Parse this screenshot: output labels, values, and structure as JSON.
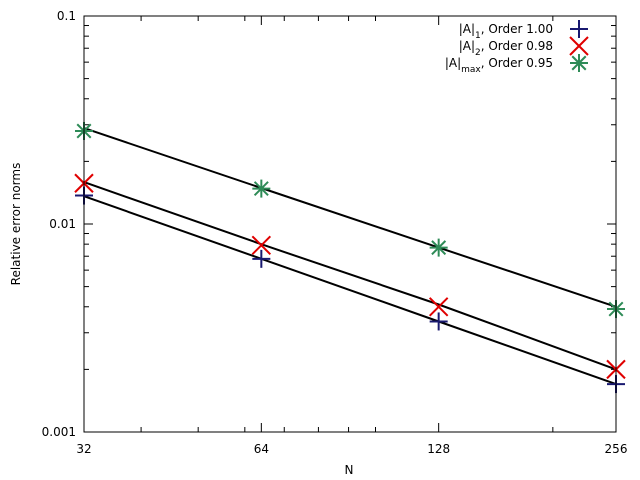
{
  "chart_data": {
    "type": "line",
    "xlabel": "N",
    "ylabel": "Relative error norms",
    "xscale": "log2",
    "yscale": "log10",
    "xlim": [
      32,
      256
    ],
    "ylim": [
      0.001,
      0.1
    ],
    "x": [
      32,
      64,
      128,
      256
    ],
    "xtick_labels": [
      "32",
      "64",
      "128",
      "256"
    ],
    "yticks": [
      0.001,
      0.01,
      0.1
    ],
    "ytick_labels": [
      "0.001",
      "0.01",
      "0.1"
    ],
    "legend_position": "top-right",
    "series": [
      {
        "name": "|A|1, Order 1.00",
        "legend_base": "|A|",
        "legend_sub": "1",
        "legend_suffix": ", Order 1.00",
        "marker": "plus",
        "color": "#191970",
        "values": [
          0.0137,
          0.0068,
          0.0034,
          0.0017
        ],
        "fit": [
          0.0136,
          0.0068,
          0.0034,
          0.0017
        ]
      },
      {
        "name": "|A|2, Order 0.98",
        "legend_base": "|A|",
        "legend_sub": "2",
        "legend_suffix": ", Order 0.98",
        "marker": "x",
        "color": "#e00000",
        "values": [
          0.0157,
          0.0079,
          0.004,
          0.002
        ],
        "fit": [
          0.0159,
          0.008,
          0.0041,
          0.002
        ]
      },
      {
        "name": "|A|max, Order 0.95",
        "legend_base": "|A|",
        "legend_sub": "max",
        "legend_suffix": ", Order 0.95",
        "marker": "star",
        "color": "#2e8b57",
        "values": [
          0.028,
          0.0148,
          0.0077,
          0.0039
        ],
        "fit": [
          0.0289,
          0.0149,
          0.0077,
          0.004
        ]
      }
    ]
  }
}
